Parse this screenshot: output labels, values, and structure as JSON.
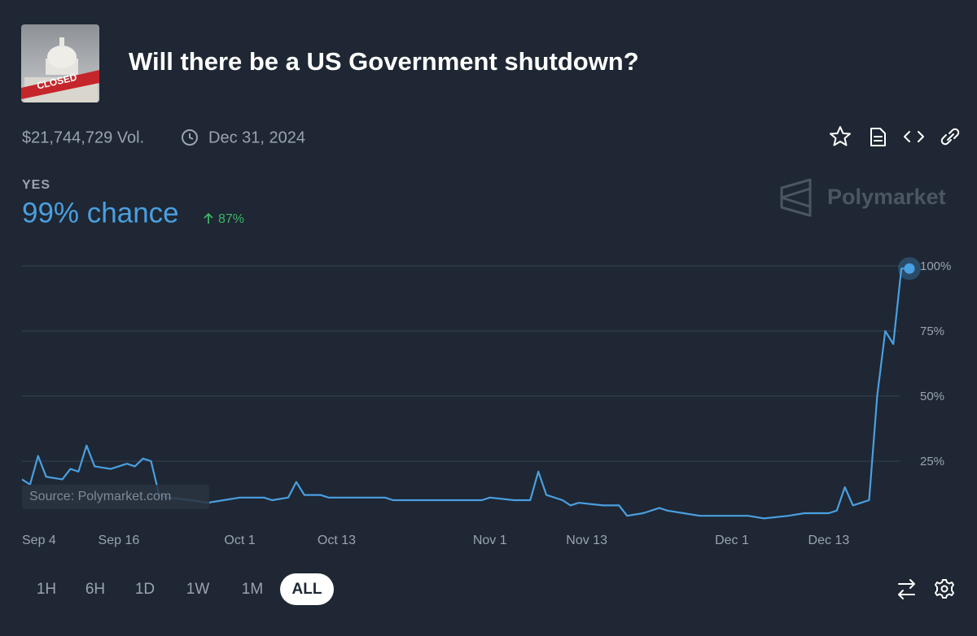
{
  "header": {
    "title": "Will there be a US Government shutdown?",
    "image_label": "CLOSED",
    "volume": "$21,744,729 Vol.",
    "end_date": "Dec 31, 2024"
  },
  "outcome": {
    "label": "YES",
    "chance": "99% chance",
    "change": "87%"
  },
  "brand": "Polymarket",
  "source": "Source: Polymarket.com",
  "timeframes": [
    "1H",
    "6H",
    "1D",
    "1W",
    "1M",
    "ALL"
  ],
  "active_timeframe": "ALL",
  "chart_data": {
    "type": "line",
    "color": "#4a9fe0",
    "grid": true,
    "x": [
      "Sep 4",
      "Sep 5",
      "Sep 6",
      "Sep 7",
      "Sep 9",
      "Sep 10",
      "Sep 11",
      "Sep 12",
      "Sep 13",
      "Sep 15",
      "Sep 17",
      "Sep 18",
      "Sep 19",
      "Sep 20",
      "Sep 21",
      "Sep 22",
      "Sep 25",
      "Sep 27",
      "Sep 29",
      "Oct 1",
      "Oct 4",
      "Oct 5",
      "Oct 7",
      "Oct 8",
      "Oct 9",
      "Oct 11",
      "Oct 12",
      "Oct 19",
      "Oct 20",
      "Oct 31",
      "Nov 1",
      "Nov 4",
      "Nov 6",
      "Nov 7",
      "Nov 8",
      "Nov 10",
      "Nov 11",
      "Nov 12",
      "Nov 15",
      "Nov 17",
      "Nov 18",
      "Nov 20",
      "Nov 22",
      "Nov 23",
      "Nov 25",
      "Nov 27",
      "Dec 3",
      "Dec 5",
      "Dec 8",
      "Dec 10",
      "Dec 13",
      "Dec 14",
      "Dec 15",
      "Dec 16",
      "Dec 17",
      "Dec 18",
      "Dec 19",
      "Dec 20",
      "Dec 21",
      "Dec 22",
      "Dec 23"
    ],
    "values": [
      18,
      16,
      27,
      19,
      18,
      22,
      21,
      31,
      23,
      22,
      24,
      23,
      26,
      25,
      12,
      11,
      10,
      9,
      10,
      11,
      11,
      10,
      11,
      17,
      12,
      12,
      11,
      11,
      10,
      10,
      11,
      10,
      10,
      21,
      12,
      10,
      8,
      9,
      8,
      8,
      4,
      5,
      7,
      6,
      5,
      4,
      4,
      3,
      4,
      5,
      5,
      6,
      15,
      8,
      9,
      10,
      50,
      75,
      70,
      99,
      99
    ],
    "xlim": [
      "Sep 4",
      "Dec 23"
    ],
    "xticks": [
      "Sep 4",
      "Sep 16",
      "Oct 1",
      "Oct 13",
      "Nov 1",
      "Nov 13",
      "Dec 1",
      "Dec 13"
    ],
    "ylim": [
      0,
      100
    ],
    "yticks": [
      {
        "value": 25,
        "label": "25%"
      },
      {
        "value": 50,
        "label": "50%"
      },
      {
        "value": 75,
        "label": "75%"
      },
      {
        "value": 100,
        "label": "100%"
      }
    ]
  }
}
